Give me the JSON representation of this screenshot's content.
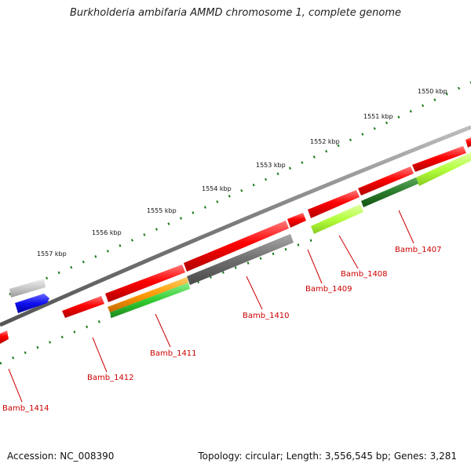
{
  "title": "Burkholderia ambifaria AMMD chromosome 1, complete genome",
  "accession": "Accession: NC_008390",
  "summary": "Topology: circular; Length: 3,556,545 bp; Genes: 3,281",
  "colors": {
    "backbone": "#808080",
    "tick": "#1a7a1a",
    "cds": "#ff0000",
    "label": "#cc0000",
    "leader": "#cc0000",
    "gray_feature": "#6f6f6f",
    "light_gray_feature": "#c8c8c8",
    "blue_feature": "#1010ee",
    "orange_feature": "#ff9900",
    "green_feature": "#33cc33",
    "dark_green_feature": "#2a7a2a",
    "lime_feature": "#b4ff3c"
  },
  "ruler_labels": [
    "1550 kbp",
    "1551 kbp",
    "1552 kbp",
    "1553 kbp",
    "1554 kbp",
    "1555 kbp",
    "1556 kbp",
    "1557 kbp"
  ],
  "genes": [
    {
      "label": "Bamb_1407"
    },
    {
      "label": "Bamb_1408"
    },
    {
      "label": "Bamb_1409"
    },
    {
      "label": "Bamb_1410"
    },
    {
      "label": "Bamb_1411"
    },
    {
      "label": "Bamb_1412"
    },
    {
      "label": "Bamb_1414"
    }
  ]
}
